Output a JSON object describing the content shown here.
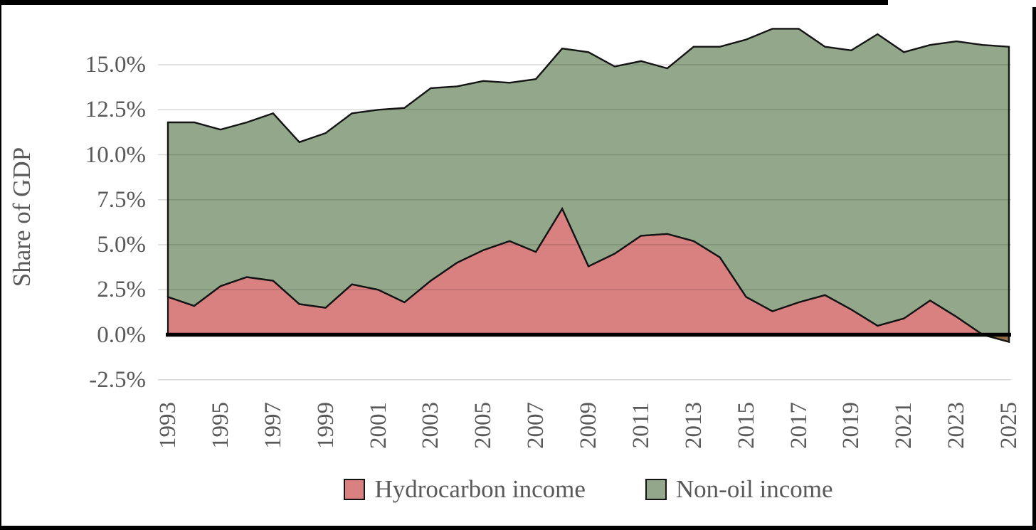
{
  "chart_data": {
    "type": "area",
    "stacked": true,
    "title": "",
    "ylabel": "Share of GDP",
    "xlabel": "",
    "grid": true,
    "legend_position": "bottom-center",
    "ylim": [
      -2.5,
      17.2
    ],
    "x": [
      1993,
      1994,
      1995,
      1996,
      1997,
      1998,
      1999,
      2000,
      2001,
      2002,
      2003,
      2004,
      2005,
      2006,
      2007,
      2008,
      2009,
      2010,
      2011,
      2012,
      2013,
      2014,
      2015,
      2016,
      2017,
      2018,
      2019,
      2020,
      2021,
      2022,
      2023,
      2024,
      2025
    ],
    "x_tick_labels": [
      "1993",
      "1995",
      "1997",
      "1999",
      "2001",
      "2003",
      "2005",
      "2007",
      "2009",
      "2011",
      "2013",
      "2015",
      "2017",
      "2019",
      "2021",
      "2023",
      "2025"
    ],
    "y_tick_labels": [
      "15.0%",
      "12.5%",
      "10.0%",
      "7.5%",
      "5.0%",
      "2.5%",
      "0.0%",
      "-2.5%"
    ],
    "y_tick_values": [
      15,
      12.5,
      10,
      7.5,
      5,
      2.5,
      0,
      -2.5
    ],
    "series": [
      {
        "name": "Hydrocarbon income",
        "color": "#d98080",
        "values": [
          2.1,
          1.6,
          2.7,
          3.2,
          3.0,
          1.7,
          1.5,
          2.8,
          2.5,
          1.8,
          3.0,
          4.0,
          4.7,
          5.2,
          4.6,
          7.0,
          3.8,
          4.5,
          5.5,
          5.6,
          5.2,
          4.3,
          2.1,
          1.3,
          1.8,
          2.2,
          1.4,
          0.5,
          0.9,
          1.9,
          1.0,
          0.0,
          -0.4
        ]
      },
      {
        "name": "Non-oil income",
        "color": "#93a88b",
        "values": [
          9.7,
          10.2,
          8.7,
          8.6,
          9.3,
          9.0,
          9.7,
          9.5,
          10.0,
          10.8,
          10.7,
          9.8,
          9.4,
          8.8,
          9.6,
          8.9,
          11.9,
          10.4,
          9.7,
          9.2,
          10.8,
          11.7,
          14.3,
          15.7,
          15.2,
          13.8,
          14.4,
          16.2,
          14.8,
          14.2,
          15.3,
          16.1,
          16.4
        ]
      }
    ]
  },
  "colors": {
    "hydrocarbon_fill": "#d98080",
    "non_oil_fill": "#93a88b",
    "negative_fill": "#966e46",
    "series_outline": "#141414",
    "zero_axis": "#000000",
    "gridline": "rgba(0,0,0,0.15)",
    "text": "#595959",
    "background": "#ffffff"
  }
}
